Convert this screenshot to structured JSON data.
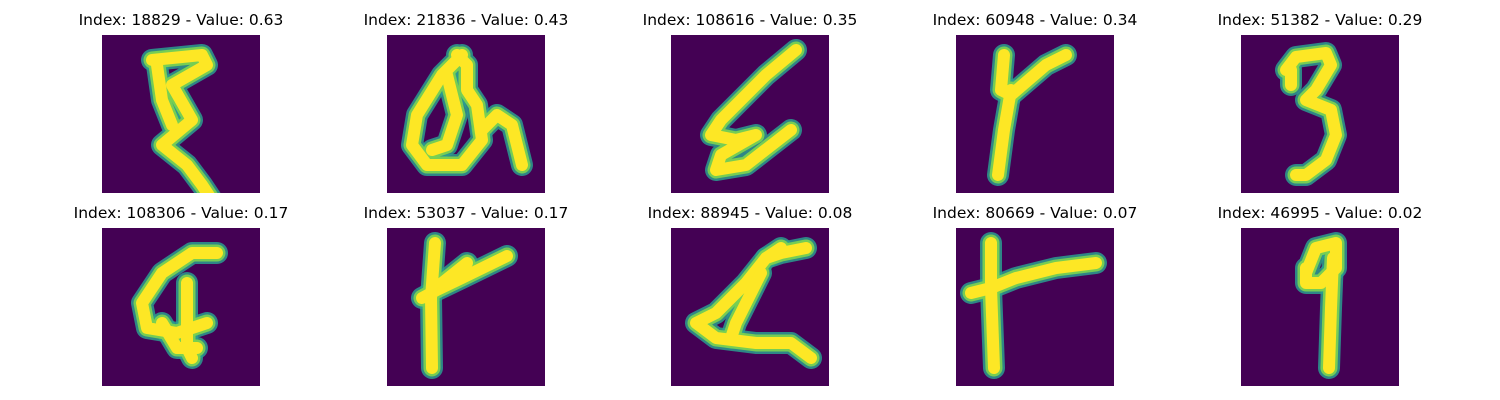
{
  "colors": {
    "background": "#440154",
    "stroke_outer": "#2a9d8f",
    "stroke_mid": "#7ad151",
    "stroke_core": "#fde725"
  },
  "panels": [
    {
      "title": "Index: 18829 - Value: 0.63",
      "glyph": "curly-e-like-stroke"
    },
    {
      "title": "Index: 21836 - Value: 0.43",
      "glyph": "loop-h-like-stroke"
    },
    {
      "title": "Index: 108616 - Value: 0.35",
      "glyph": "slanted-e-like-stroke"
    },
    {
      "title": "Index: 60948 - Value: 0.34",
      "glyph": "y-like-stroke"
    },
    {
      "title": "Index: 51382 - Value: 0.29",
      "glyph": "three-like-stroke"
    },
    {
      "title": "Index: 108306 - Value: 0.17",
      "glyph": "looped-cross-stroke"
    },
    {
      "title": "Index: 53037 - Value: 0.17",
      "glyph": "forked-stroke"
    },
    {
      "title": "Index: 88945 - Value: 0.08",
      "glyph": "triangle-like-stroke"
    },
    {
      "title": "Index: 80669 - Value: 0.07",
      "glyph": "t-like-stroke"
    },
    {
      "title": "Index: 46995 - Value: 0.02",
      "glyph": "nine-like-stroke"
    }
  ]
}
